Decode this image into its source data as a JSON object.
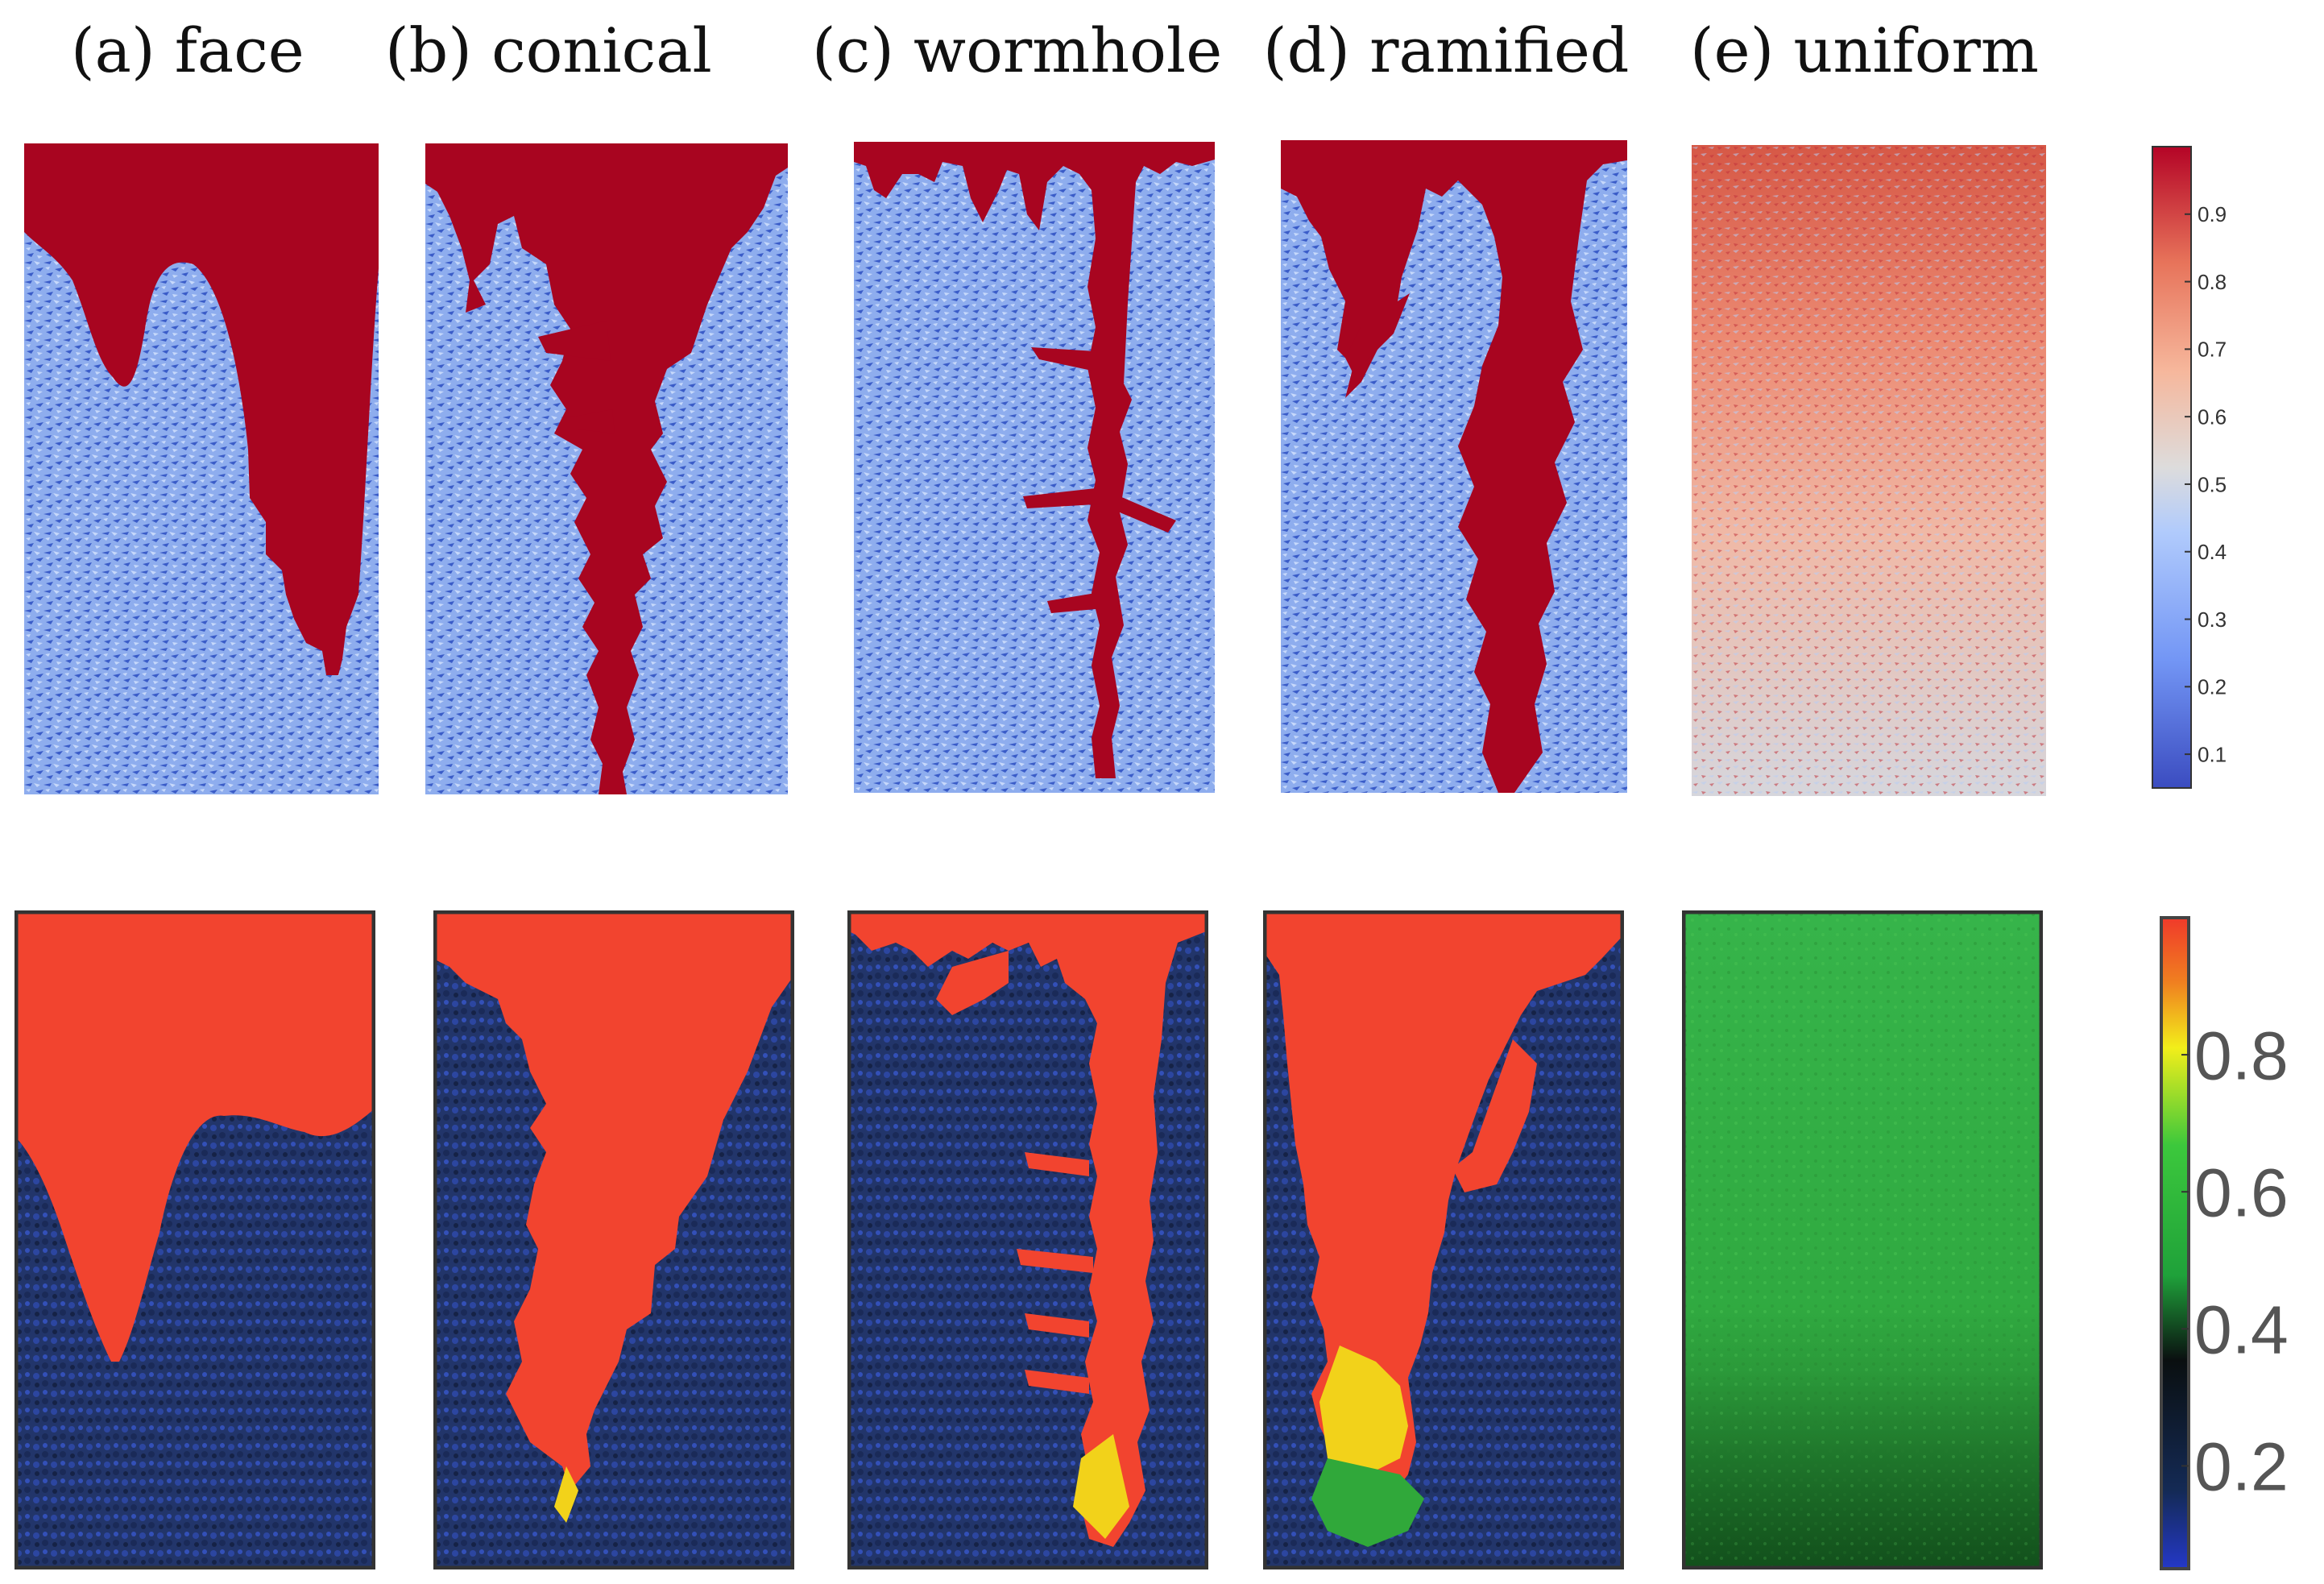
{
  "columns": [
    {
      "id": "a",
      "label": "(a) face"
    },
    {
      "id": "b",
      "label": "(b) conical"
    },
    {
      "id": "c",
      "label": "(c) wormhole"
    },
    {
      "id": "d",
      "label": "(d) ramified"
    },
    {
      "id": "e",
      "label": "(e) uniform"
    }
  ],
  "top_colorbar": {
    "ticks": [
      "0.9",
      "0.8",
      "0.7",
      "0.6",
      "0.5",
      "0.4",
      "0.3",
      "0.2",
      "0.1"
    ],
    "tick_values": [
      0.9,
      0.8,
      0.7,
      0.6,
      0.5,
      0.4,
      0.3,
      0.2,
      0.1
    ],
    "range": [
      0.05,
      1.0
    ],
    "colormap": [
      "#3b4cc0",
      "#7396f5",
      "#b1cbfc",
      "#dddcdc",
      "#f6b79c",
      "#e7735a",
      "#b40426"
    ]
  },
  "bottom_colorbar": {
    "ticks": [
      "0.8",
      "0.6",
      "0.4",
      "0.2"
    ],
    "tick_values": [
      0.8,
      0.6,
      0.4,
      0.2
    ],
    "range": [
      0.05,
      1.0
    ],
    "colormap": [
      "#2438c8",
      "#142a55",
      "#0a0f10",
      "#1fa13a",
      "#3cc83c",
      "#f2ee1a",
      "#f08020",
      "#f03a2a"
    ]
  },
  "colors": {
    "top_dissolved": "#a80520",
    "top_matrix_light": "#a8c4f2",
    "top_matrix_dark": "#3a5cc8",
    "bottom_dissolved": "#f2442f",
    "bottom_matrix": "#22356a",
    "bottom_uniform": "#2fa83f"
  }
}
